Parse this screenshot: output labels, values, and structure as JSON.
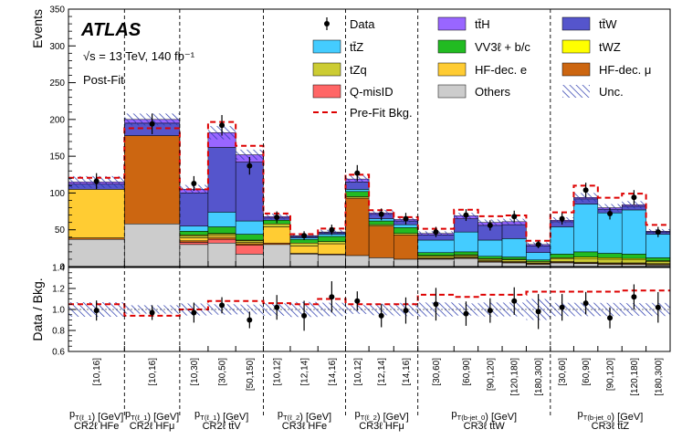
{
  "chart_data": {
    "type": "bar",
    "stacked": true,
    "ylabel_top": "Events",
    "ylabel_bottom": "Data / Bkg.",
    "ylim_top": [
      0,
      350
    ],
    "yticks_top": [
      "0",
      "50",
      "100",
      "150",
      "200",
      "250",
      "300",
      "350"
    ],
    "ylim_bottom": [
      0.6,
      1.4
    ],
    "yticks_bottom": [
      "0.6",
      "0.8",
      "1.0",
      "1.2",
      "1.4"
    ],
    "experiment": "ATLAS",
    "energy_line": "√s = 13 TeV, 140 fb⁻¹",
    "fit_label": "Post-Fit",
    "legend": {
      "data": "Data",
      "items": [
        {
          "key": "ttH",
          "label": "tt̄H",
          "color": "#9966ff"
        },
        {
          "key": "ttW",
          "label": "tt̄W",
          "color": "#5555cc"
        },
        {
          "key": "ttZ",
          "label": "tt̄Z",
          "color": "#44ccff"
        },
        {
          "key": "VV",
          "label": "VV3ℓ + b/c",
          "color": "#22bb22"
        },
        {
          "key": "tWZ",
          "label": "tWZ",
          "color": "#ffff00"
        },
        {
          "key": "tZq",
          "label": "tZq",
          "color": "#cccc33"
        },
        {
          "key": "HFe",
          "label": "HF-dec. e",
          "color": "#ffcc33"
        },
        {
          "key": "HFmu",
          "label": "HF-dec. μ",
          "color": "#cc6611"
        },
        {
          "key": "Qmis",
          "label": "Q-misID",
          "color": "#ff6666"
        },
        {
          "key": "Others",
          "label": "Others",
          "color": "#cccccc"
        },
        {
          "key": "PreFit",
          "label": "Pre-Fit Bkg.",
          "color": "#dd0000"
        },
        {
          "key": "Unc",
          "label": "Unc.",
          "color": "#2233aa"
        }
      ]
    },
    "stack_order": [
      "Others",
      "Qmis",
      "HFmu",
      "HFe",
      "tZq",
      "tWZ",
      "VV",
      "ttZ",
      "ttW",
      "ttH"
    ],
    "categories": [
      {
        "label": "[10,16]",
        "region": "CR2ℓ HFe",
        "Others": 37,
        "Qmis": 0,
        "HFmu": 2,
        "HFe": 66,
        "tZq": 0,
        "tWZ": 0,
        "VV": 0,
        "ttZ": 0,
        "ttW": 7,
        "ttH": 3,
        "unc": 8,
        "data": 116,
        "data_err": 11,
        "ratio": 0.99,
        "prefit_ratio": 1.05
      },
      {
        "label": "[10,16]",
        "region": "CR2ℓ HFμ",
        "Others": 58,
        "Qmis": 0,
        "HFmu": 120,
        "HFe": 0,
        "tZq": 0,
        "tWZ": 0,
        "VV": 0,
        "ttZ": 0,
        "ttW": 17,
        "ttH": 5,
        "unc": 8,
        "data": 194,
        "data_err": 14,
        "ratio": 0.97,
        "prefit_ratio": 0.94
      },
      {
        "label": "[10,30]",
        "region": "CR2ℓ tt̄V",
        "Others": 30,
        "Qmis": 3,
        "HFmu": 2,
        "HFe": 4,
        "tZq": 3,
        "tWZ": 1,
        "VV": 5,
        "ttZ": 7,
        "ttW": 45,
        "ttH": 5,
        "unc": 6,
        "data": 113,
        "data_err": 10,
        "ratio": 0.97,
        "prefit_ratio": 1.0
      },
      {
        "label": "[30,50]",
        "region": "CR2ℓ tt̄V",
        "Others": 32,
        "Qmis": 5,
        "HFmu": 2,
        "HFe": 3,
        "tZq": 2,
        "tWZ": 1,
        "VV": 9,
        "ttZ": 20,
        "ttW": 88,
        "ttH": 20,
        "unc": 9,
        "data": 192,
        "data_err": 14,
        "ratio": 1.04,
        "prefit_ratio": 1.08
      },
      {
        "label": "[50,150]",
        "region": "CR2ℓ tt̄V",
        "Others": 17,
        "Qmis": 12,
        "HFmu": 2,
        "HFe": 2,
        "tZq": 2,
        "tWZ": 1,
        "VV": 8,
        "ttZ": 18,
        "ttW": 80,
        "ttH": 10,
        "unc": 7,
        "data": 137,
        "data_err": 12,
        "ratio": 0.9,
        "prefit_ratio": 1.08
      },
      {
        "label": "[10,12]",
        "region": "CR3ℓ HFe",
        "Others": 30,
        "Qmis": 0,
        "HFmu": 2,
        "HFe": 22,
        "tZq": 4,
        "tWZ": 0,
        "VV": 5,
        "ttZ": 0,
        "ttW": 3,
        "ttH": 2,
        "unc": 4,
        "data": 67,
        "data_err": 8,
        "ratio": 1.02,
        "prefit_ratio": 1.06
      },
      {
        "label": "[12,14]",
        "region": "CR3ℓ HFe",
        "Others": 17,
        "Qmis": 0,
        "HFmu": 1,
        "HFe": 10,
        "tZq": 4,
        "tWZ": 0,
        "VV": 5,
        "ttZ": 2,
        "ttW": 2,
        "ttH": 1,
        "unc": 3,
        "data": 42,
        "data_err": 6,
        "ratio": 0.94,
        "prefit_ratio": 1.05
      },
      {
        "label": "[14,16]",
        "region": "CR3ℓ HFe",
        "Others": 16,
        "Qmis": 0,
        "HFmu": 1,
        "HFe": 14,
        "tZq": 3,
        "tWZ": 0,
        "VV": 7,
        "ttZ": 3,
        "ttW": 2,
        "ttH": 1,
        "unc": 3,
        "data": 50,
        "data_err": 7,
        "ratio": 1.12,
        "prefit_ratio": 1.1
      },
      {
        "label": "[10,12]",
        "region": "CR3ℓ HFμ",
        "Others": 15,
        "Qmis": 0,
        "HFmu": 78,
        "HFe": 0,
        "tZq": 2,
        "tWZ": 0,
        "VV": 7,
        "ttZ": 3,
        "ttW": 10,
        "ttH": 4,
        "unc": 5,
        "data": 127,
        "data_err": 11,
        "ratio": 1.08,
        "prefit_ratio": 1.05
      },
      {
        "label": "[12,14]",
        "region": "CR3ℓ HFμ",
        "Others": 12,
        "Qmis": 0,
        "HFmu": 43,
        "HFe": 0,
        "tZq": 2,
        "tWZ": 0,
        "VV": 5,
        "ttZ": 3,
        "ttW": 6,
        "ttH": 2,
        "unc": 4,
        "data": 71,
        "data_err": 8,
        "ratio": 0.94,
        "prefit_ratio": 1.05
      },
      {
        "label": "[14,16]",
        "region": "CR3ℓ HFμ",
        "Others": 10,
        "Qmis": 0,
        "HFmu": 33,
        "HFe": 0,
        "tZq": 2,
        "tWZ": 0,
        "VV": 8,
        "ttZ": 4,
        "ttW": 5,
        "ttH": 2,
        "unc": 4,
        "data": 65,
        "data_err": 8,
        "ratio": 0.99,
        "prefit_ratio": 1.05
      },
      {
        "label": "[30,60]",
        "region": "CR3ℓ tt̄W",
        "Others": 10,
        "Qmis": 0,
        "HFmu": 1,
        "HFe": 1,
        "tZq": 2,
        "tWZ": 1,
        "VV": 4,
        "ttZ": 17,
        "ttW": 7,
        "ttH": 2,
        "unc": 3,
        "data": 47,
        "data_err": 7,
        "ratio": 1.05,
        "prefit_ratio": 1.14
      },
      {
        "label": "[60,90]",
        "region": "CR3ℓ tt̄W",
        "Others": 11,
        "Qmis": 0,
        "HFmu": 1,
        "HFe": 1,
        "tZq": 2,
        "tWZ": 1,
        "VV": 4,
        "ttZ": 27,
        "ttW": 18,
        "ttH": 4,
        "unc": 4,
        "data": 70,
        "data_err": 8,
        "ratio": 0.96,
        "prefit_ratio": 1.12
      },
      {
        "label": "[90,120]",
        "region": "CR3ℓ tt̄W",
        "Others": 6,
        "Qmis": 0,
        "HFmu": 1,
        "HFe": 1,
        "tZq": 2,
        "tWZ": 1,
        "VV": 3,
        "ttZ": 22,
        "ttW": 20,
        "ttH": 4,
        "unc": 4,
        "data": 56,
        "data_err": 7,
        "ratio": 0.99,
        "prefit_ratio": 1.14
      },
      {
        "label": "[120,180]",
        "region": "CR3ℓ tt̄W",
        "Others": 5,
        "Qmis": 0,
        "HFmu": 1,
        "HFe": 1,
        "tZq": 2,
        "tWZ": 1,
        "VV": 3,
        "ttZ": 25,
        "ttW": 19,
        "ttH": 4,
        "unc": 4,
        "data": 68,
        "data_err": 8,
        "ratio": 1.08,
        "prefit_ratio": 1.14
      },
      {
        "label": "[180,300]",
        "region": "CR3ℓ tt̄W",
        "Others": 3,
        "Qmis": 0,
        "HFmu": 1,
        "HFe": 1,
        "tZq": 2,
        "tWZ": 0,
        "VV": 2,
        "ttZ": 10,
        "ttW": 9,
        "ttH": 2,
        "unc": 3,
        "data": 30,
        "data_err": 5,
        "ratio": 0.98,
        "prefit_ratio": 1.17
      },
      {
        "label": "[30,60]",
        "region": "CR3ℓ tt̄Z",
        "Others": 5,
        "Qmis": 0,
        "HFmu": 1,
        "HFe": 1,
        "tZq": 4,
        "tWZ": 1,
        "VV": 5,
        "ttZ": 37,
        "ttW": 7,
        "ttH": 2,
        "unc": 4,
        "data": 65,
        "data_err": 8,
        "ratio": 1.02,
        "prefit_ratio": 1.17
      },
      {
        "label": "[60,90]",
        "region": "CR3ℓ tt̄Z",
        "Others": 4,
        "Qmis": 0,
        "HFmu": 1,
        "HFe": 1,
        "tZq": 5,
        "tWZ": 2,
        "VV": 7,
        "ttZ": 65,
        "ttW": 7,
        "ttH": 2,
        "unc": 6,
        "data": 104,
        "data_err": 10,
        "ratio": 1.06,
        "prefit_ratio": 1.17
      },
      {
        "label": "[90,120]",
        "region": "CR3ℓ tt̄Z",
        "Others": 3,
        "Qmis": 0,
        "HFmu": 1,
        "HFe": 1,
        "tZq": 5,
        "tWZ": 2,
        "VV": 6,
        "ttZ": 55,
        "ttW": 5,
        "ttH": 2,
        "unc": 5,
        "data": 72,
        "data_err": 8,
        "ratio": 0.92,
        "prefit_ratio": 1.17
      },
      {
        "label": "[120,180]",
        "region": "CR3ℓ tt̄Z",
        "Others": 3,
        "Qmis": 0,
        "HFmu": 1,
        "HFe": 1,
        "tZq": 4,
        "tWZ": 2,
        "VV": 6,
        "ttZ": 60,
        "ttW": 5,
        "ttH": 2,
        "unc": 5,
        "data": 94,
        "data_err": 10,
        "ratio": 1.12,
        "prefit_ratio": 1.18
      },
      {
        "label": "[180,300]",
        "region": "CR3ℓ tt̄Z",
        "Others": 2,
        "Qmis": 0,
        "HFmu": 1,
        "HFe": 1,
        "tZq": 3,
        "tWZ": 1,
        "VV": 4,
        "ttZ": 32,
        "ttW": 3,
        "ttH": 1,
        "unc": 3,
        "data": 47,
        "data_err": 7,
        "ratio": 1.02,
        "prefit_ratio": 1.18
      }
    ],
    "groups": [
      {
        "line1": "p_T(ℓ_1) [GeV]",
        "line2": "CR2ℓ HFe",
        "bins": [
          0,
          0
        ]
      },
      {
        "line1": "p_T(ℓ_1) [GeV]",
        "line2": "CR2ℓ HFμ",
        "bins": [
          1,
          1
        ]
      },
      {
        "line1": "p_T(ℓ_1) [GeV]",
        "line2": "CR2ℓ tt̄V",
        "bins": [
          2,
          4
        ]
      },
      {
        "line1": "p_T(ℓ_2) [GeV]",
        "line2": "CR3ℓ HFe",
        "bins": [
          5,
          7
        ]
      },
      {
        "line1": "p_T(ℓ_2) [GeV]",
        "line2": "CR3ℓ HFμ",
        "bins": [
          8,
          10
        ]
      },
      {
        "line1": "p_T(b-jet_0) [GeV]",
        "line2": "CR3ℓ tt̄W",
        "bins": [
          11,
          15
        ]
      },
      {
        "line1": "p_T(b-jet_0) [GeV]",
        "line2": "CR3ℓ tt̄Z",
        "bins": [
          16,
          20
        ]
      }
    ]
  }
}
